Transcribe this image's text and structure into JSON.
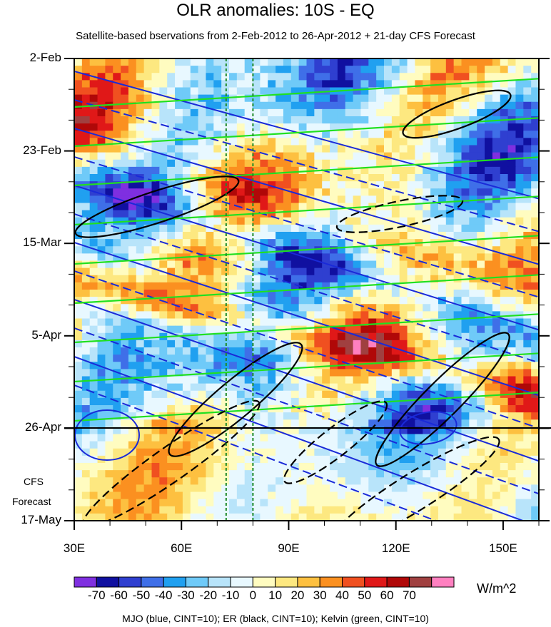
{
  "chart_data": {
    "type": "heatmap",
    "title": "OLR anomalies: 10S - EQ",
    "subtitle": "Satellite-based bservations from 2-Feb-2012 to 26-Apr-2012 + 21-day CFS Forecast",
    "x_ticks": [
      "30E",
      "60E",
      "90E",
      "120E",
      "150E"
    ],
    "x_tick_values": [
      30,
      60,
      90,
      120,
      150
    ],
    "xlim": [
      30,
      160
    ],
    "y_ticks": [
      "2-Feb",
      "23-Feb",
      "15-Mar",
      "5-Apr",
      "26-Apr",
      "17-May"
    ],
    "forecast_label_line1": "CFS",
    "forecast_label_line2": "Forecast",
    "forecast_start": "26-Apr",
    "reference_longitudes": [
      72.5,
      80
    ],
    "colorbar": {
      "labels": [
        "-70",
        "-60",
        "-50",
        "-40",
        "-30",
        "-20",
        "-10",
        "0",
        "10",
        "20",
        "30",
        "40",
        "50",
        "60",
        "70"
      ],
      "colors": [
        "#7f2fe0",
        "#1010a0",
        "#2f3fd0",
        "#3f6fe8",
        "#20a0f0",
        "#6fcaf8",
        "#b8e4fa",
        "#e8f8ff",
        "#fffcc0",
        "#fde880",
        "#fdc040",
        "#fb9020",
        "#f05020",
        "#e01818",
        "#b00808",
        "#a04040",
        "#ff80c0"
      ],
      "units": "W/m^2"
    },
    "overlays": "MJO (blue, CINT=10); ER (black, CINT=10); Kelvin (green, CINT=10)"
  }
}
